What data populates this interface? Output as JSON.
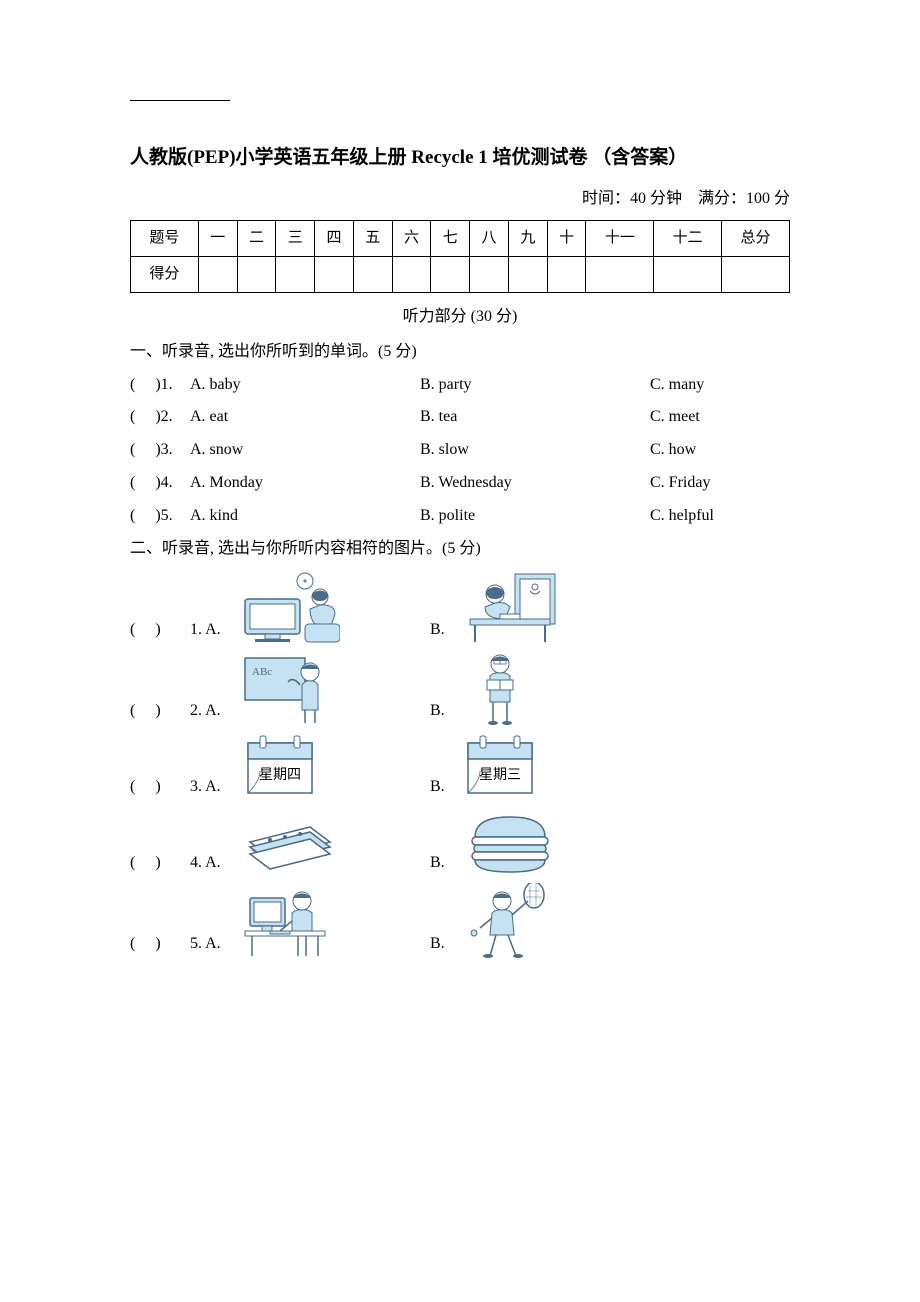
{
  "document": {
    "title": "人教版(PEP)小学英语五年级上册  Recycle 1 培优测试卷  （含答案）",
    "time_label": "时间：40 分钟",
    "score_label": "满分：100 分",
    "colors": {
      "text": "#000000",
      "background": "#ffffff",
      "illustration_fill": "#c5e2f2",
      "illustration_stroke": "#4a6b8a",
      "table_border": "#000000"
    },
    "score_table": {
      "headers": [
        "题号",
        "一",
        "二",
        "三",
        "四",
        "五",
        "六",
        "七",
        "八",
        "九",
        "十",
        "十一",
        "十二",
        "总分"
      ],
      "row2_label": "得分"
    },
    "listening_header": "听力部分  (30 分)",
    "section1": {
      "title": "一、听录音,  选出你所听到的单词。(5 分)",
      "items": [
        {
          "n": "1",
          "a": "A. baby",
          "b": "B. party",
          "c": "C. many"
        },
        {
          "n": "2",
          "a": "A. eat",
          "b": "B. tea",
          "c": "C. meet"
        },
        {
          "n": "3",
          "a": "A. snow",
          "b": "B. slow",
          "c": "C. how"
        },
        {
          "n": "4",
          "a": "A. Monday",
          "b": "B. Wednesday",
          "c": "C. Friday"
        },
        {
          "n": "5",
          "a": "A. kind",
          "b": "B. polite",
          "c": "C. helpful"
        }
      ]
    },
    "section2": {
      "title": "二、听录音,  选出与你所听内容相符的图片。(5 分)",
      "items": [
        {
          "n": "1",
          "imgA": "girl-tv",
          "imgB": "girl-desk"
        },
        {
          "n": "2",
          "imgA": "boy-board",
          "imgB": "boy-reading"
        },
        {
          "n": "3",
          "imgA": "calendar-thu",
          "textA": "星期四",
          "imgB": "calendar-wed",
          "textB": "星期三"
        },
        {
          "n": "4",
          "imgA": "sandwich",
          "imgB": "hamburger"
        },
        {
          "n": "5",
          "imgA": "boy-computer",
          "imgB": "boy-tennis"
        }
      ]
    },
    "paren_open": "(",
    "paren_close": ")",
    "label_a": "A.",
    "label_b": "B."
  }
}
